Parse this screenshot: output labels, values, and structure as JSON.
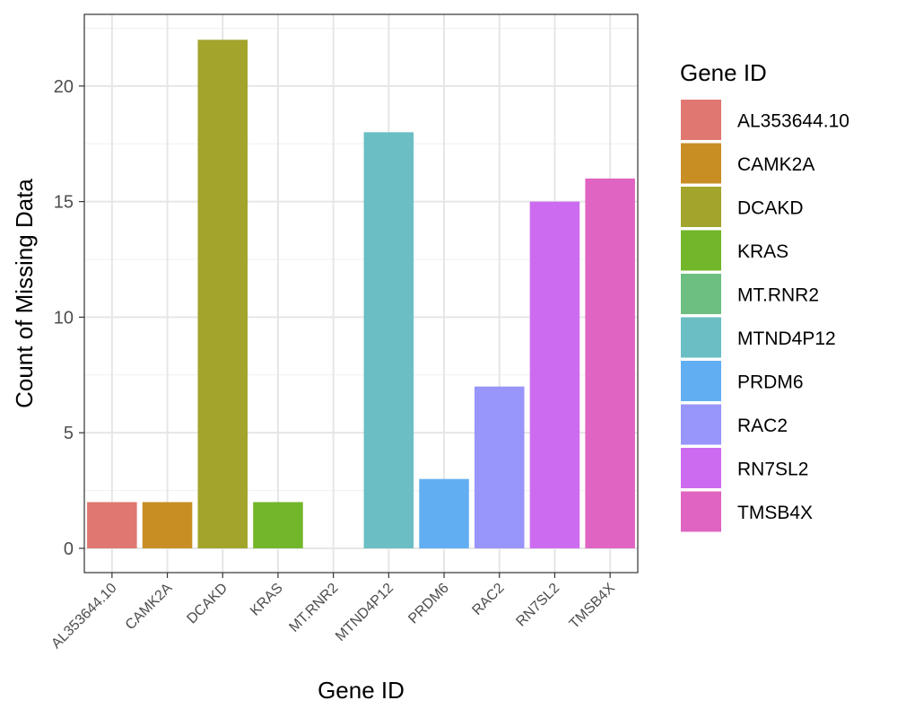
{
  "chart_data": {
    "type": "bar",
    "categories": [
      "AL353644.10",
      "CAMK2A",
      "DCAKD",
      "KRAS",
      "MT.RNR2",
      "MTND4P12",
      "PRDM6",
      "RAC2",
      "RN7SL2",
      "TMSB4X"
    ],
    "values": [
      2,
      2,
      22,
      2,
      0,
      18,
      3,
      7,
      15,
      16
    ],
    "colors": [
      "#e07770",
      "#c88e24",
      "#a2a42b",
      "#72b62a",
      "#6cbf80",
      "#6abec4",
      "#62aef2",
      "#9895fb",
      "#cd6bf0",
      "#e064c1"
    ],
    "xlabel": "Gene ID",
    "ylabel": "Count of Missing Data",
    "ylim": [
      -1.05,
      23.1
    ],
    "yticks": [
      0,
      5,
      10,
      15,
      20
    ],
    "legend": {
      "title": "Gene ID",
      "position": "right"
    },
    "grid": true
  }
}
